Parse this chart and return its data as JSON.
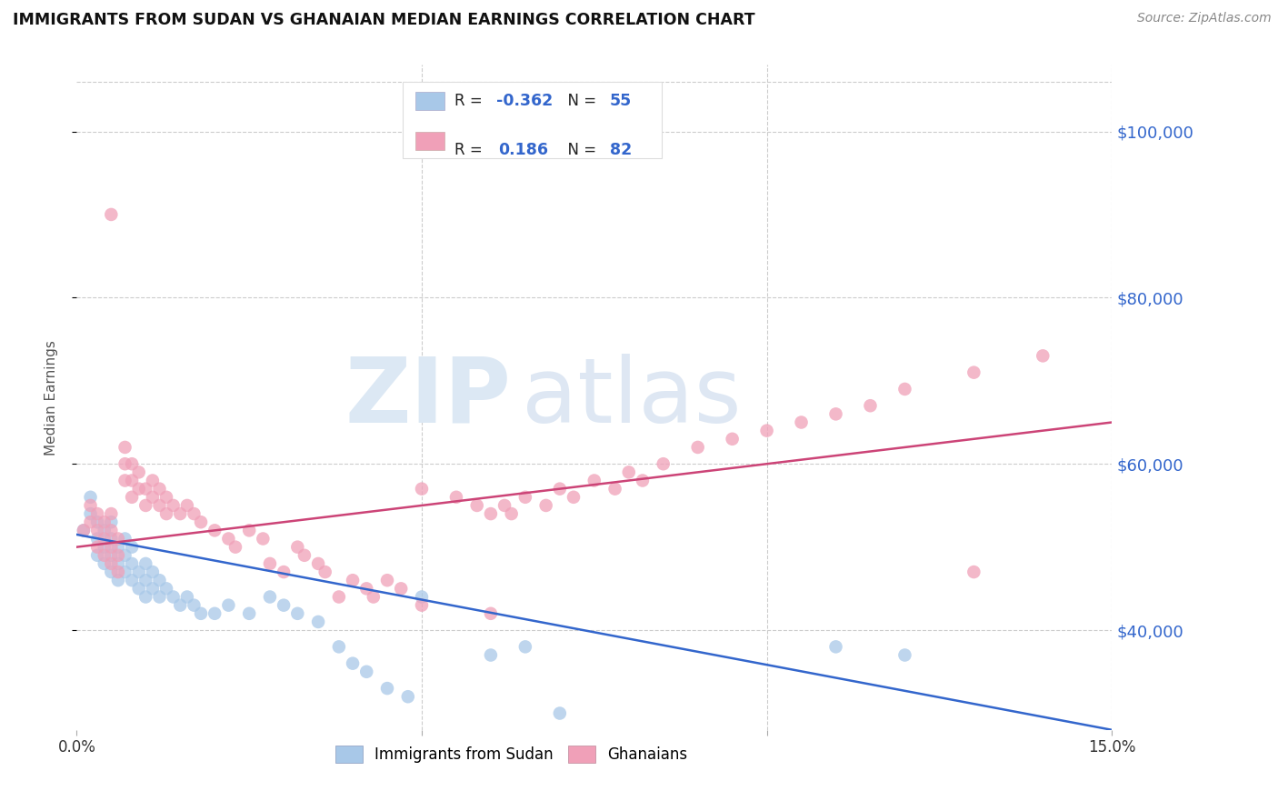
{
  "title": "IMMIGRANTS FROM SUDAN VS GHANAIAN MEDIAN EARNINGS CORRELATION CHART",
  "source": "Source: ZipAtlas.com",
  "ylabel": "Median Earnings",
  "yticks": [
    40000,
    60000,
    80000,
    100000
  ],
  "ytick_labels": [
    "$40,000",
    "$60,000",
    "$80,000",
    "$100,000"
  ],
  "xlim": [
    0.0,
    0.15
  ],
  "ylim": [
    28000,
    108000
  ],
  "color_sudan": "#a8c8e8",
  "color_ghana": "#f0a0b8",
  "color_line_sudan": "#3366cc",
  "color_line_ghana": "#cc4477",
  "color_ytick_label": "#3366cc",
  "watermark_zip": "ZIP",
  "watermark_atlas": "atlas",
  "background_color": "#ffffff",
  "sudan_line_y0": 51500,
  "sudan_line_y1": 28000,
  "ghana_line_y0": 50000,
  "ghana_line_y1": 65000,
  "sudan_x": [
    0.001,
    0.002,
    0.002,
    0.003,
    0.003,
    0.003,
    0.004,
    0.004,
    0.004,
    0.005,
    0.005,
    0.005,
    0.005,
    0.006,
    0.006,
    0.006,
    0.007,
    0.007,
    0.007,
    0.008,
    0.008,
    0.008,
    0.009,
    0.009,
    0.01,
    0.01,
    0.01,
    0.011,
    0.011,
    0.012,
    0.012,
    0.013,
    0.014,
    0.015,
    0.016,
    0.017,
    0.018,
    0.02,
    0.022,
    0.025,
    0.028,
    0.03,
    0.032,
    0.035,
    0.038,
    0.04,
    0.042,
    0.045,
    0.048,
    0.05,
    0.06,
    0.065,
    0.07,
    0.11,
    0.12
  ],
  "sudan_y": [
    52000,
    54000,
    56000,
    49000,
    51000,
    53000,
    48000,
    50000,
    52000,
    47000,
    49000,
    51000,
    53000,
    46000,
    48000,
    50000,
    47000,
    49000,
    51000,
    46000,
    48000,
    50000,
    45000,
    47000,
    44000,
    46000,
    48000,
    45000,
    47000,
    44000,
    46000,
    45000,
    44000,
    43000,
    44000,
    43000,
    42000,
    42000,
    43000,
    42000,
    44000,
    43000,
    42000,
    41000,
    38000,
    36000,
    35000,
    33000,
    32000,
    44000,
    37000,
    38000,
    30000,
    38000,
    37000
  ],
  "ghana_x": [
    0.001,
    0.002,
    0.002,
    0.003,
    0.003,
    0.003,
    0.004,
    0.004,
    0.004,
    0.005,
    0.005,
    0.005,
    0.005,
    0.006,
    0.006,
    0.006,
    0.007,
    0.007,
    0.007,
    0.008,
    0.008,
    0.008,
    0.009,
    0.009,
    0.01,
    0.01,
    0.011,
    0.011,
    0.012,
    0.012,
    0.013,
    0.013,
    0.014,
    0.015,
    0.016,
    0.017,
    0.018,
    0.02,
    0.022,
    0.023,
    0.025,
    0.027,
    0.028,
    0.03,
    0.032,
    0.033,
    0.035,
    0.036,
    0.038,
    0.04,
    0.042,
    0.043,
    0.045,
    0.047,
    0.05,
    0.05,
    0.055,
    0.058,
    0.06,
    0.06,
    0.062,
    0.063,
    0.065,
    0.068,
    0.07,
    0.072,
    0.075,
    0.078,
    0.08,
    0.082,
    0.085,
    0.09,
    0.095,
    0.1,
    0.105,
    0.11,
    0.115,
    0.12,
    0.13,
    0.14,
    0.005,
    0.13
  ],
  "ghana_y": [
    52000,
    55000,
    53000,
    50000,
    52000,
    54000,
    49000,
    51000,
    53000,
    48000,
    50000,
    52000,
    54000,
    47000,
    49000,
    51000,
    58000,
    60000,
    62000,
    56000,
    58000,
    60000,
    57000,
    59000,
    55000,
    57000,
    56000,
    58000,
    55000,
    57000,
    54000,
    56000,
    55000,
    54000,
    55000,
    54000,
    53000,
    52000,
    51000,
    50000,
    52000,
    51000,
    48000,
    47000,
    50000,
    49000,
    48000,
    47000,
    44000,
    46000,
    45000,
    44000,
    46000,
    45000,
    43000,
    57000,
    56000,
    55000,
    54000,
    42000,
    55000,
    54000,
    56000,
    55000,
    57000,
    56000,
    58000,
    57000,
    59000,
    58000,
    60000,
    62000,
    63000,
    64000,
    65000,
    66000,
    67000,
    69000,
    71000,
    73000,
    90000,
    47000
  ]
}
